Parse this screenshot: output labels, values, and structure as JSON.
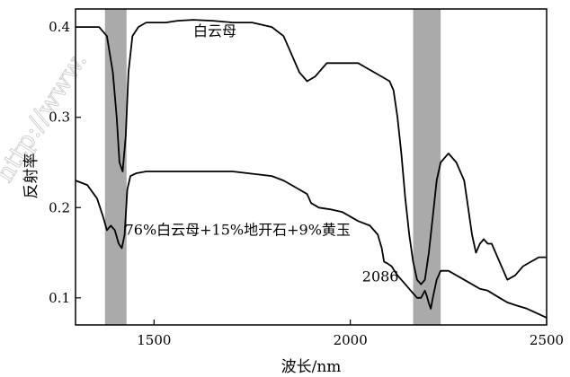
{
  "chart_data": {
    "type": "line",
    "xlabel": "波长/nm",
    "ylabel": "反射率",
    "xlim": [
      1300,
      2500
    ],
    "ylim": [
      0.07,
      0.42
    ],
    "xticks": [
      1500,
      2000,
      2500
    ],
    "yticks": [
      0.1,
      0.2,
      0.3,
      0.4
    ],
    "xtick_labels": [
      "1500",
      "2000",
      "2500"
    ],
    "ytick_labels": [
      "0.1",
      "0.2",
      "0.3",
      "0.4"
    ],
    "bands": [
      {
        "x0": 1375,
        "x1": 1430,
        "color": "#aaaaaa"
      },
      {
        "x0": 2160,
        "x1": 2230,
        "color": "#aaaaaa"
      }
    ],
    "series": [
      {
        "name": "白云母",
        "x": [
          1300,
          1330,
          1360,
          1380,
          1395,
          1405,
          1412,
          1420,
          1428,
          1435,
          1445,
          1460,
          1480,
          1500,
          1530,
          1560,
          1600,
          1650,
          1700,
          1750,
          1800,
          1830,
          1850,
          1870,
          1890,
          1910,
          1920,
          1930,
          1940,
          1950,
          1970,
          2000,
          2020,
          2040,
          2060,
          2080,
          2100,
          2110,
          2120,
          2130,
          2140,
          2150,
          2160,
          2170,
          2180,
          2190,
          2200,
          2210,
          2220,
          2230,
          2250,
          2270,
          2280,
          2290,
          2300,
          2310,
          2320,
          2330,
          2340,
          2350,
          2360,
          2380,
          2400,
          2420,
          2440,
          2460,
          2480,
          2500
        ],
        "y": [
          0.4,
          0.4,
          0.4,
          0.39,
          0.35,
          0.3,
          0.25,
          0.24,
          0.28,
          0.35,
          0.39,
          0.4,
          0.405,
          0.405,
          0.405,
          0.407,
          0.408,
          0.407,
          0.405,
          0.405,
          0.4,
          0.39,
          0.37,
          0.35,
          0.34,
          0.345,
          0.35,
          0.355,
          0.36,
          0.36,
          0.36,
          0.36,
          0.36,
          0.355,
          0.35,
          0.345,
          0.34,
          0.33,
          0.3,
          0.26,
          0.21,
          0.17,
          0.14,
          0.12,
          0.115,
          0.12,
          0.15,
          0.19,
          0.23,
          0.25,
          0.26,
          0.25,
          0.24,
          0.23,
          0.2,
          0.17,
          0.15,
          0.16,
          0.165,
          0.16,
          0.16,
          0.14,
          0.12,
          0.125,
          0.135,
          0.14,
          0.145,
          0.145
        ]
      },
      {
        "name": "76%白云母+15%地开石+9%黄玉",
        "x": [
          1300,
          1330,
          1355,
          1370,
          1380,
          1390,
          1400,
          1410,
          1418,
          1425,
          1432,
          1440,
          1455,
          1480,
          1520,
          1600,
          1700,
          1800,
          1830,
          1850,
          1870,
          1890,
          1900,
          1920,
          1950,
          1980,
          2000,
          2020,
          2050,
          2070,
          2080,
          2086,
          2095,
          2105,
          2120,
          2140,
          2160,
          2170,
          2180,
          2190,
          2195,
          2200,
          2205,
          2210,
          2220,
          2230,
          2250,
          2270,
          2290,
          2310,
          2330,
          2350,
          2380,
          2400,
          2420,
          2450,
          2480,
          2500
        ],
        "y": [
          0.23,
          0.225,
          0.21,
          0.19,
          0.175,
          0.18,
          0.175,
          0.16,
          0.155,
          0.17,
          0.22,
          0.235,
          0.238,
          0.24,
          0.24,
          0.24,
          0.24,
          0.235,
          0.23,
          0.225,
          0.22,
          0.215,
          0.205,
          0.2,
          0.198,
          0.195,
          0.19,
          0.185,
          0.18,
          0.17,
          0.155,
          0.14,
          0.138,
          0.135,
          0.125,
          0.115,
          0.105,
          0.1,
          0.1,
          0.108,
          0.102,
          0.094,
          0.088,
          0.1,
          0.12,
          0.13,
          0.13,
          0.125,
          0.12,
          0.115,
          0.11,
          0.108,
          0.1,
          0.095,
          0.092,
          0.088,
          0.082,
          0.078
        ]
      }
    ],
    "annotations": [
      {
        "text": "白云母",
        "x": 1600,
        "y": 0.39
      },
      {
        "text": "76%白云母+15%地开石+9%黄玉",
        "x": 1425,
        "y": 0.17
      },
      {
        "text": "2086",
        "x": 2030,
        "y": 0.118
      }
    ],
    "watermark": "http://www."
  }
}
